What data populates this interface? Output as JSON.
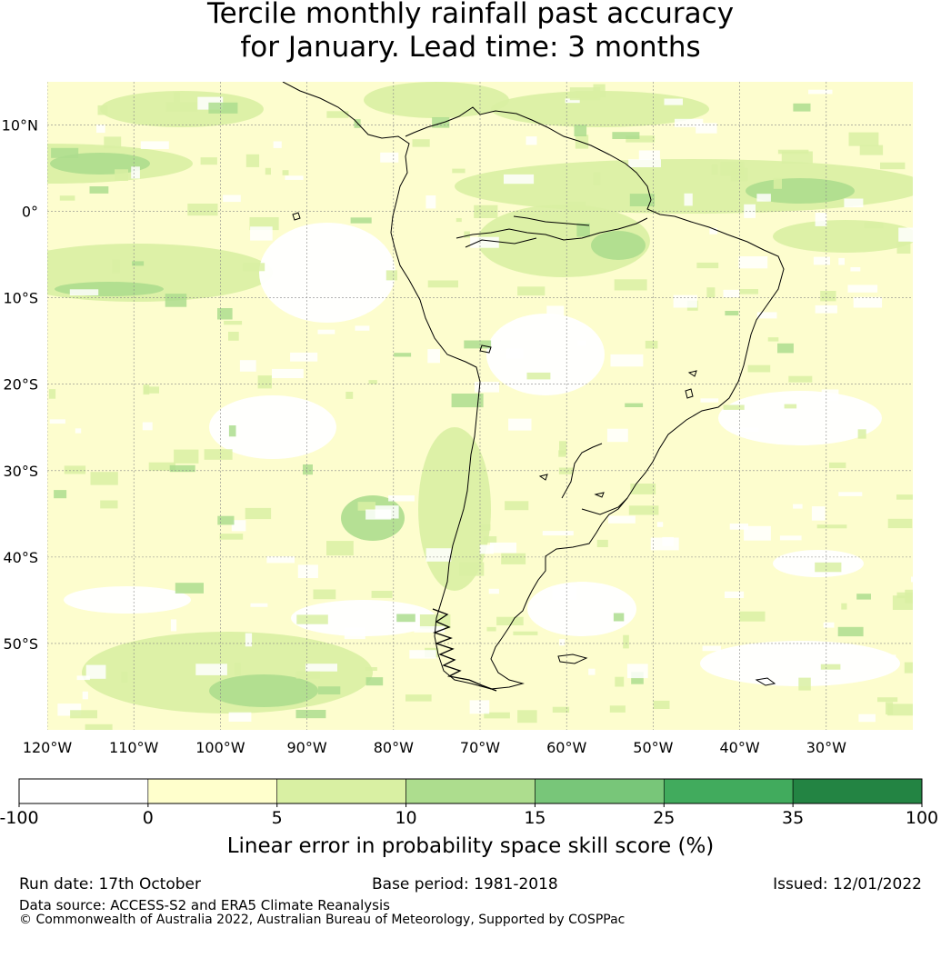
{
  "title": {
    "line1": "Tercile monthly rainfall past accuracy",
    "line2": "for January. Lead time: 3 months"
  },
  "map": {
    "lat_labels": [
      "10°N",
      "0°",
      "10°S",
      "20°S",
      "30°S",
      "40°S",
      "50°S"
    ],
    "lat_values": [
      10,
      0,
      -10,
      -20,
      -30,
      -40,
      -50
    ],
    "lon_labels": [
      "120°W",
      "110°W",
      "100°W",
      "90°W",
      "80°W",
      "70°W",
      "60°W",
      "50°W",
      "40°W",
      "30°W"
    ],
    "lon_values": [
      -120,
      -110,
      -100,
      -90,
      -80,
      -70,
      -60,
      -50,
      -40,
      -30
    ],
    "extent": {
      "lon_min": -120,
      "lon_max": -20,
      "lat_min": -60,
      "lat_max": 15
    },
    "land_region": "South America",
    "colors": {
      "ocean_base": "#fdfdce",
      "white": "#ffffff",
      "light_green": "#d9f0a3",
      "mid_green": "#addd8e",
      "green": "#78c679",
      "coast": "#000000",
      "grid": "#888888"
    }
  },
  "colorbar": {
    "bins": [
      {
        "from": "-100",
        "to": "0",
        "color": "#ffffff"
      },
      {
        "from": "0",
        "to": "5",
        "color": "#ffffcc"
      },
      {
        "from": "5",
        "to": "10",
        "color": "#d9f0a3"
      },
      {
        "from": "10",
        "to": "15",
        "color": "#addd8e"
      },
      {
        "from": "15",
        "to": "25",
        "color": "#78c679"
      },
      {
        "from": "25",
        "to": "35",
        "color": "#41ab5d"
      },
      {
        "from": "35",
        "to": "100",
        "color": "#238443"
      }
    ],
    "tick_labels": [
      "-100",
      "0",
      "5",
      "10",
      "15",
      "25",
      "35",
      "100"
    ],
    "label": "Linear error in probability space skill score (%)"
  },
  "footer": {
    "run_date": "Run date: 17th October",
    "base_period": "Base period: 1981-2018",
    "issued": "Issued: 12/01/2022",
    "data_source": "Data source: ACCESS-S2 and ERA5 Climate Reanalysis",
    "copyright": "© Commonwealth of Australia 2022, Australian Bureau of Meteorology, Supported by COSPPac"
  }
}
